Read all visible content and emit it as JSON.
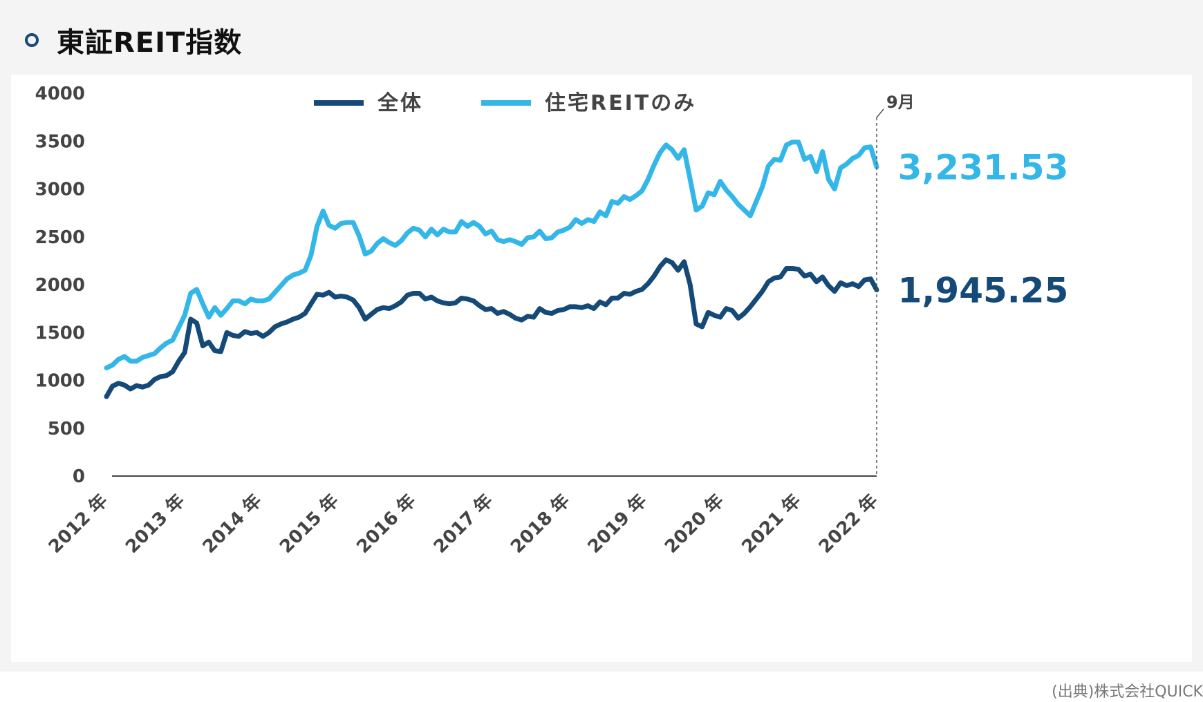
{
  "title": "東証REIT指数",
  "source": "(出典)株式会社QUICK",
  "colors": {
    "all": "#154a78",
    "residential": "#33b6e8",
    "title_marker": "#1b4a7a"
  },
  "chart_data": {
    "type": "line",
    "title": "東証REIT指数",
    "xlabel": "",
    "ylabel": "",
    "ylim": [
      0,
      4000
    ],
    "yticks": [
      0,
      500,
      1000,
      1500,
      2000,
      2500,
      3000,
      3500,
      4000
    ],
    "x_ticks": [
      "2012 年",
      "2013 年",
      "2014 年",
      "2015 年",
      "2016 年",
      "2017 年",
      "2018 年",
      "2019 年",
      "2020 年",
      "2021 年",
      "2022 年"
    ],
    "xlim": [
      0,
      128
    ],
    "grid": false,
    "legend_position": "top-center",
    "end_marker_label": "9月",
    "series": [
      {
        "name": "全体",
        "color": "#154a78",
        "end_value_label": "1,945.25",
        "points": [
          [
            0,
            830
          ],
          [
            1,
            940
          ],
          [
            2,
            970
          ],
          [
            3,
            950
          ],
          [
            4,
            910
          ],
          [
            5,
            945
          ],
          [
            6,
            930
          ],
          [
            7,
            950
          ],
          [
            8,
            1010
          ],
          [
            9,
            1040
          ],
          [
            10,
            1050
          ],
          [
            11,
            1090
          ],
          [
            12,
            1200
          ],
          [
            13,
            1290
          ],
          [
            14,
            1640
          ],
          [
            15,
            1600
          ],
          [
            16,
            1360
          ],
          [
            17,
            1400
          ],
          [
            18,
            1310
          ],
          [
            19,
            1300
          ],
          [
            20,
            1500
          ],
          [
            21,
            1470
          ],
          [
            22,
            1460
          ],
          [
            23,
            1510
          ],
          [
            24,
            1490
          ],
          [
            25,
            1500
          ],
          [
            26,
            1460
          ],
          [
            27,
            1500
          ],
          [
            28,
            1560
          ],
          [
            29,
            1590
          ],
          [
            30,
            1610
          ],
          [
            31,
            1640
          ],
          [
            32,
            1660
          ],
          [
            33,
            1700
          ],
          [
            34,
            1800
          ],
          [
            35,
            1900
          ],
          [
            36,
            1890
          ],
          [
            37,
            1920
          ],
          [
            38,
            1870
          ],
          [
            39,
            1880
          ],
          [
            40,
            1870
          ],
          [
            41,
            1840
          ],
          [
            42,
            1760
          ],
          [
            43,
            1640
          ],
          [
            44,
            1690
          ],
          [
            45,
            1740
          ],
          [
            46,
            1760
          ],
          [
            47,
            1750
          ],
          [
            48,
            1780
          ],
          [
            49,
            1820
          ],
          [
            50,
            1890
          ],
          [
            51,
            1910
          ],
          [
            52,
            1910
          ],
          [
            53,
            1850
          ],
          [
            54,
            1870
          ],
          [
            55,
            1830
          ],
          [
            56,
            1810
          ],
          [
            57,
            1800
          ],
          [
            58,
            1810
          ],
          [
            59,
            1860
          ],
          [
            60,
            1850
          ],
          [
            61,
            1830
          ],
          [
            62,
            1780
          ],
          [
            63,
            1740
          ],
          [
            64,
            1750
          ],
          [
            65,
            1700
          ],
          [
            66,
            1720
          ],
          [
            67,
            1690
          ],
          [
            68,
            1650
          ],
          [
            69,
            1630
          ],
          [
            70,
            1670
          ],
          [
            71,
            1660
          ],
          [
            72,
            1750
          ],
          [
            73,
            1710
          ],
          [
            74,
            1700
          ],
          [
            75,
            1730
          ],
          [
            76,
            1740
          ],
          [
            77,
            1770
          ],
          [
            78,
            1770
          ],
          [
            79,
            1760
          ],
          [
            80,
            1780
          ],
          [
            81,
            1750
          ],
          [
            82,
            1820
          ],
          [
            83,
            1790
          ],
          [
            84,
            1860
          ],
          [
            85,
            1860
          ],
          [
            86,
            1910
          ],
          [
            87,
            1900
          ],
          [
            88,
            1930
          ],
          [
            89,
            1950
          ],
          [
            90,
            2010
          ],
          [
            91,
            2090
          ],
          [
            92,
            2190
          ],
          [
            93,
            2260
          ],
          [
            94,
            2230
          ],
          [
            95,
            2150
          ],
          [
            96,
            2240
          ],
          [
            97,
            2000
          ],
          [
            98,
            1590
          ],
          [
            99,
            1560
          ],
          [
            100,
            1710
          ],
          [
            101,
            1680
          ],
          [
            102,
            1660
          ],
          [
            103,
            1750
          ],
          [
            104,
            1730
          ],
          [
            105,
            1650
          ],
          [
            106,
            1700
          ],
          [
            107,
            1770
          ],
          [
            108,
            1850
          ],
          [
            109,
            1930
          ],
          [
            110,
            2030
          ],
          [
            111,
            2070
          ],
          [
            112,
            2080
          ],
          [
            113,
            2170
          ],
          [
            114,
            2170
          ],
          [
            115,
            2160
          ],
          [
            116,
            2090
          ],
          [
            117,
            2110
          ],
          [
            118,
            2030
          ],
          [
            119,
            2080
          ],
          [
            120,
            1990
          ],
          [
            121,
            1930
          ],
          [
            122,
            2020
          ],
          [
            123,
            1990
          ],
          [
            124,
            2010
          ],
          [
            125,
            1980
          ],
          [
            126,
            2050
          ],
          [
            127,
            2060
          ],
          [
            128,
            1945
          ]
        ]
      },
      {
        "name": "住宅REITのみ",
        "color": "#33b6e8",
        "end_value_label": "3,231.53",
        "points": [
          [
            0,
            1130
          ],
          [
            1,
            1160
          ],
          [
            2,
            1220
          ],
          [
            3,
            1250
          ],
          [
            4,
            1200
          ],
          [
            5,
            1200
          ],
          [
            6,
            1240
          ],
          [
            7,
            1260
          ],
          [
            8,
            1280
          ],
          [
            9,
            1340
          ],
          [
            10,
            1390
          ],
          [
            11,
            1420
          ],
          [
            12,
            1550
          ],
          [
            13,
            1680
          ],
          [
            14,
            1910
          ],
          [
            15,
            1950
          ],
          [
            16,
            1800
          ],
          [
            17,
            1660
          ],
          [
            18,
            1760
          ],
          [
            19,
            1680
          ],
          [
            20,
            1750
          ],
          [
            21,
            1830
          ],
          [
            22,
            1830
          ],
          [
            23,
            1800
          ],
          [
            24,
            1850
          ],
          [
            25,
            1830
          ],
          [
            26,
            1830
          ],
          [
            27,
            1850
          ],
          [
            28,
            1920
          ],
          [
            29,
            1990
          ],
          [
            30,
            2060
          ],
          [
            31,
            2100
          ],
          [
            32,
            2120
          ],
          [
            33,
            2150
          ],
          [
            34,
            2310
          ],
          [
            35,
            2610
          ],
          [
            36,
            2770
          ],
          [
            37,
            2620
          ],
          [
            38,
            2590
          ],
          [
            39,
            2640
          ],
          [
            40,
            2650
          ],
          [
            41,
            2650
          ],
          [
            42,
            2510
          ],
          [
            43,
            2320
          ],
          [
            44,
            2350
          ],
          [
            45,
            2430
          ],
          [
            46,
            2480
          ],
          [
            47,
            2440
          ],
          [
            48,
            2410
          ],
          [
            49,
            2460
          ],
          [
            50,
            2540
          ],
          [
            51,
            2590
          ],
          [
            52,
            2570
          ],
          [
            53,
            2500
          ],
          [
            54,
            2580
          ],
          [
            55,
            2520
          ],
          [
            56,
            2580
          ],
          [
            57,
            2550
          ],
          [
            58,
            2550
          ],
          [
            59,
            2660
          ],
          [
            60,
            2610
          ],
          [
            61,
            2650
          ],
          [
            62,
            2610
          ],
          [
            63,
            2530
          ],
          [
            64,
            2560
          ],
          [
            65,
            2470
          ],
          [
            66,
            2450
          ],
          [
            67,
            2470
          ],
          [
            68,
            2450
          ],
          [
            69,
            2420
          ],
          [
            70,
            2490
          ],
          [
            71,
            2500
          ],
          [
            72,
            2560
          ],
          [
            73,
            2480
          ],
          [
            74,
            2490
          ],
          [
            75,
            2550
          ],
          [
            76,
            2570
          ],
          [
            77,
            2600
          ],
          [
            78,
            2680
          ],
          [
            79,
            2640
          ],
          [
            80,
            2680
          ],
          [
            81,
            2660
          ],
          [
            82,
            2760
          ],
          [
            83,
            2720
          ],
          [
            84,
            2870
          ],
          [
            85,
            2850
          ],
          [
            86,
            2920
          ],
          [
            87,
            2890
          ],
          [
            88,
            2930
          ],
          [
            89,
            2980
          ],
          [
            90,
            3100
          ],
          [
            91,
            3250
          ],
          [
            92,
            3380
          ],
          [
            93,
            3460
          ],
          [
            94,
            3410
          ],
          [
            95,
            3320
          ],
          [
            96,
            3410
          ],
          [
            97,
            3100
          ],
          [
            98,
            2780
          ],
          [
            99,
            2820
          ],
          [
            100,
            2960
          ],
          [
            101,
            2940
          ],
          [
            102,
            3080
          ],
          [
            103,
            2990
          ],
          [
            104,
            2920
          ],
          [
            105,
            2840
          ],
          [
            106,
            2780
          ],
          [
            107,
            2720
          ],
          [
            108,
            2870
          ],
          [
            109,
            3020
          ],
          [
            110,
            3240
          ],
          [
            111,
            3310
          ],
          [
            112,
            3300
          ],
          [
            113,
            3460
          ],
          [
            114,
            3490
          ],
          [
            115,
            3490
          ],
          [
            116,
            3310
          ],
          [
            117,
            3340
          ],
          [
            118,
            3180
          ],
          [
            119,
            3390
          ],
          [
            120,
            3100
          ],
          [
            121,
            3000
          ],
          [
            122,
            3220
          ],
          [
            123,
            3260
          ],
          [
            124,
            3320
          ],
          [
            125,
            3350
          ],
          [
            126,
            3430
          ],
          [
            127,
            3440
          ],
          [
            128,
            3232
          ]
        ]
      }
    ]
  }
}
